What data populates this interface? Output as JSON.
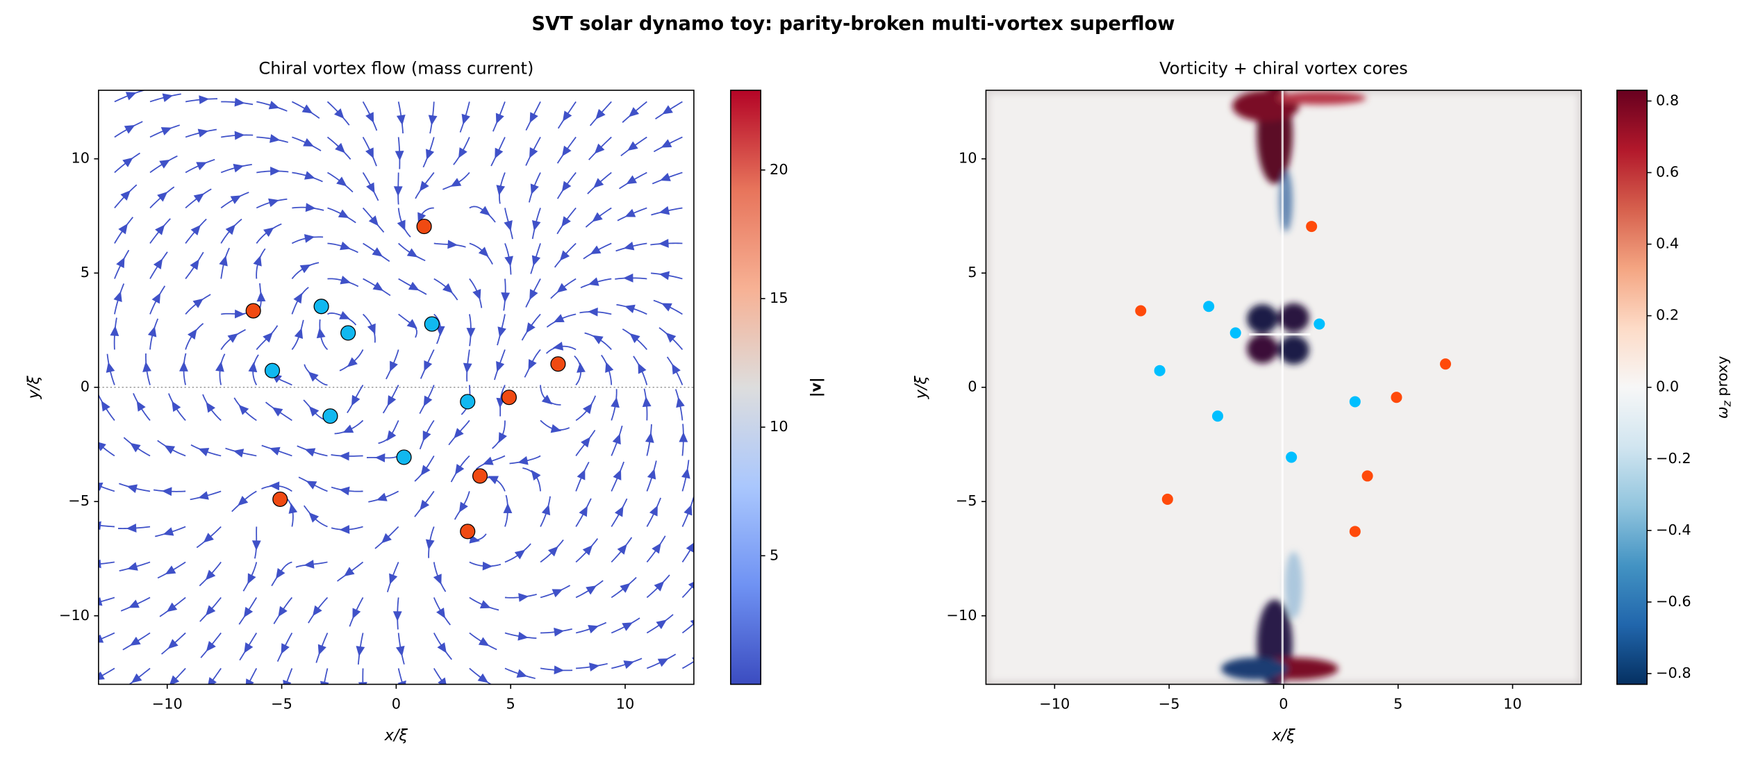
{
  "figure_title": "SVT solar dynamo toy: parity-broken multi-vortex superflow",
  "chart_data": [
    {
      "type": "streamplot",
      "title": "Chiral vortex flow (mass current)",
      "x_label": "x/ξ",
      "y_label": "y/ξ",
      "xlim": [
        -13,
        13
      ],
      "ylim": [
        -13,
        13
      ],
      "xticks": [
        {
          "value": -10,
          "label": "−10"
        },
        {
          "value": -5,
          "label": "−5"
        },
        0,
        5,
        10
      ],
      "yticks": [
        {
          "value": -10,
          "label": "−10"
        },
        {
          "value": -5,
          "label": "−5"
        },
        0,
        5,
        10
      ],
      "stream_color": "#3f51c8",
      "marker_edge": "#000000",
      "series": [
        {
          "color": "#f04a12",
          "x": [
            1.22,
            -6.24,
            7.07,
            4.93,
            3.66,
            -5.07,
            3.12
          ],
          "values": [
            7.04,
            3.35,
            1.02,
            -0.44,
            -3.88,
            -4.9,
            -6.31
          ]
        },
        {
          "color": "#11b8f0",
          "x": [
            -3.27,
            -2.1,
            1.56,
            -5.41,
            3.12,
            -2.88,
            0.34
          ],
          "values": [
            3.54,
            2.38,
            2.77,
            0.73,
            -0.63,
            -1.26,
            -3.06
          ]
        }
      ],
      "colorbar": {
        "label": "|v|",
        "cmap": "coolwarm",
        "lim": [
          0,
          23.1
        ],
        "ticks": [
          5,
          10,
          15,
          20
        ]
      }
    },
    {
      "type": "heatmap",
      "title": "Vorticity + chiral vortex cores",
      "x_label": "x/ξ",
      "y_label": "y/ξ",
      "xlim": [
        -13,
        13
      ],
      "ylim": [
        -13,
        13
      ],
      "xticks": [
        {
          "value": -10,
          "label": "−10"
        },
        {
          "value": -5,
          "label": "−5"
        },
        0,
        5,
        10
      ],
      "yticks": [
        {
          "value": -10,
          "label": "−10"
        },
        {
          "value": -5,
          "label": "−5"
        },
        0,
        5,
        10
      ],
      "series": [
        {
          "color": "#ff4a0a",
          "x": [
            1.22,
            -6.24,
            7.07,
            4.93,
            3.66,
            -5.07,
            3.12
          ],
          "values": [
            7.04,
            3.35,
            1.02,
            -0.44,
            -3.88,
            -4.9,
            -6.31
          ]
        },
        {
          "color": "#00bfff",
          "x": [
            -3.27,
            -2.1,
            1.56,
            -5.41,
            3.12,
            -2.88,
            0.34
          ],
          "values": [
            3.54,
            2.38,
            2.77,
            0.73,
            -0.63,
            -1.26,
            -3.06
          ]
        }
      ],
      "colorbar": {
        "label": [
          "ω",
          "z",
          "proxy"
        ],
        "cmap": "RdBu_r",
        "lim": [
          -0.83,
          0.83
        ],
        "ticks": [
          {
            "value": -0.8,
            "label": "−0.8"
          },
          {
            "value": -0.6,
            "label": "−0.6"
          },
          {
            "value": -0.4,
            "label": "−0.4"
          },
          {
            "value": -0.2,
            "label": "−0.2"
          },
          {
            "value": 0.0,
            "label": "0.0"
          },
          {
            "value": 0.2,
            "label": "0.2"
          },
          {
            "value": 0.4,
            "label": "0.4"
          },
          {
            "value": 0.6,
            "label": "0.6"
          },
          {
            "value": 0.8,
            "label": "0.8"
          }
        ]
      }
    }
  ]
}
